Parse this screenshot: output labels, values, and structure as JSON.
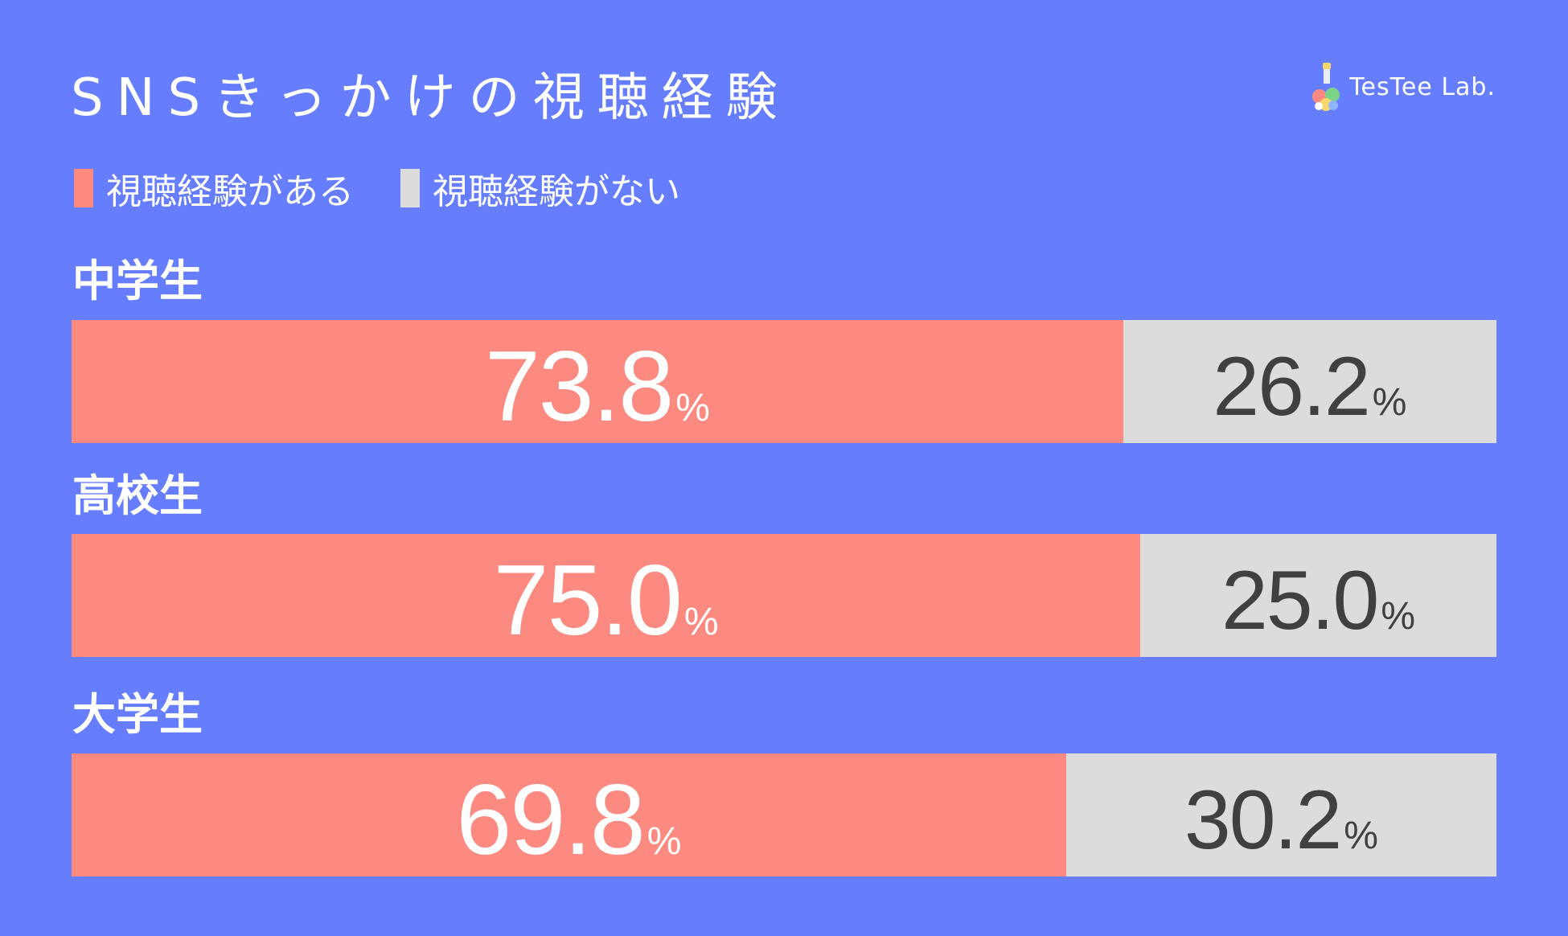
{
  "title": "SNSきっかけの視聴経験",
  "logo": {
    "text": "TesTee Lab."
  },
  "legend": [
    {
      "label": "視聴経験がある",
      "color": "#FC8A80"
    },
    {
      "label": "視聴経験がない",
      "color": "#DCDCDC"
    }
  ],
  "colors": {
    "background": "#667DFE",
    "yes": "#FC8A80",
    "no": "#DCDCDC",
    "yes_text": "#FFFFFF",
    "no_text": "#404040"
  },
  "chart_data": {
    "type": "bar",
    "orientation": "horizontal",
    "stacked": true,
    "title": "SNSきっかけの視聴経験",
    "unit": "%",
    "categories": [
      "中学生",
      "高校生",
      "大学生"
    ],
    "series": [
      {
        "name": "視聴経験がある",
        "values": [
          73.8,
          75.0,
          69.8
        ],
        "labels": [
          "73.8",
          "75.0",
          "69.8"
        ]
      },
      {
        "name": "視聴経験がない",
        "values": [
          26.2,
          25.0,
          30.2
        ],
        "labels": [
          "26.2",
          "25.0",
          "30.2"
        ]
      }
    ],
    "legend": "top-left",
    "grid": false
  }
}
